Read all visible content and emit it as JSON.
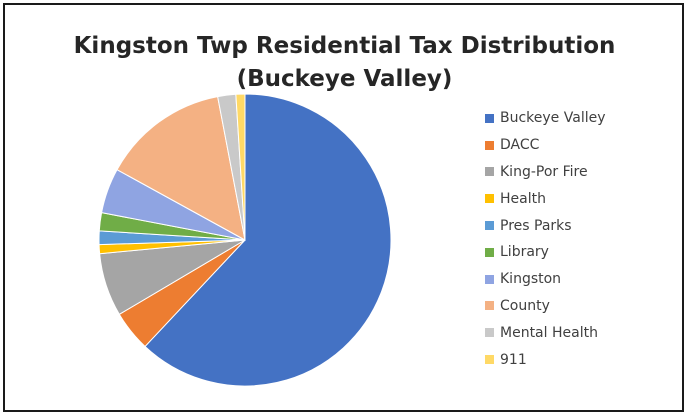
{
  "chart_data": {
    "type": "pie",
    "title_line1": "Kingston Twp Residential Tax Distribution",
    "title_line2": "(Buckeye Valley)",
    "legend_placement": "right",
    "slices": [
      {
        "label": "Buckeye Valley",
        "value": 62.0,
        "color": "#4472C4"
      },
      {
        "label": "DACC",
        "value": 4.5,
        "color": "#ED7D31"
      },
      {
        "label": "King-Por Fire",
        "value": 7.0,
        "color": "#A5A5A5"
      },
      {
        "label": "Health",
        "value": 1.0,
        "color": "#FFC000"
      },
      {
        "label": "Pres Parks",
        "value": 1.5,
        "color": "#5B9BD5"
      },
      {
        "label": "Library",
        "value": 2.0,
        "color": "#70AD47"
      },
      {
        "label": "Kingston",
        "value": 5.0,
        "color": "#8FA4E2"
      },
      {
        "label": "County",
        "value": 14.0,
        "color": "#F4B183"
      },
      {
        "label": "Mental Health",
        "value": 2.0,
        "color": "#C9C9C9"
      },
      {
        "label": "911",
        "value": 1.0,
        "color": "#FFD966"
      }
    ]
  }
}
